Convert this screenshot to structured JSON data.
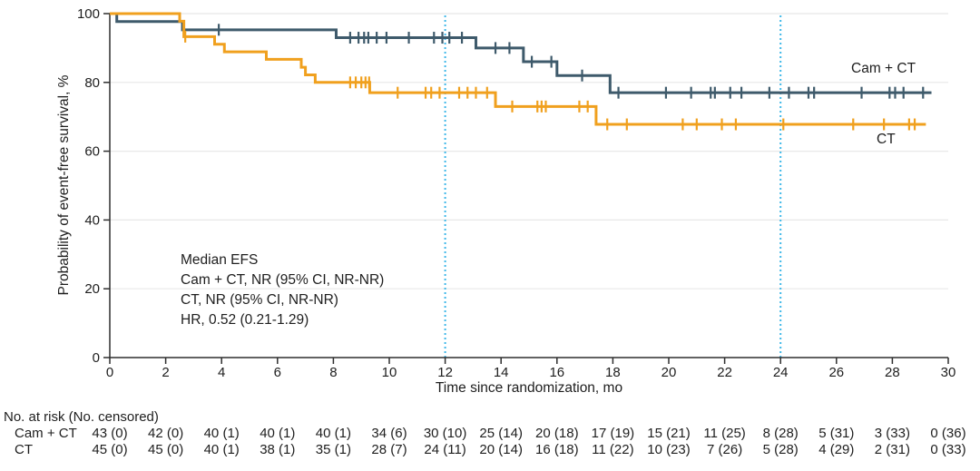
{
  "colors": {
    "axis": "#2E2E2E",
    "grid": "#E8E8E8",
    "text": "#1E1E1E",
    "reference_line": "#3FB8E8"
  },
  "chart_data": {
    "type": "line",
    "subtype": "kaplan-meier-step",
    "title": "",
    "xlabel": "Time since randomization, mo",
    "ylabel": "Probability of event-free survival, %",
    "xlim": [
      0,
      30
    ],
    "ylim": [
      0,
      100
    ],
    "xticks": [
      0,
      2,
      4,
      6,
      8,
      10,
      12,
      14,
      16,
      18,
      20,
      22,
      24,
      26,
      28,
      30
    ],
    "yticks": [
      0,
      20,
      40,
      60,
      80,
      100
    ],
    "grid": "horizontal",
    "legend_position": "inline-right",
    "reference_lines_x": [
      12,
      24
    ],
    "annotation_lines": [
      "Median EFS",
      "Cam + CT, NR (95% CI, NR-NR)",
      "CT, NR (95% CI, NR-NR)",
      "HR, 0.52 (0.21-1.29)"
    ],
    "series": [
      {
        "name": "Cam + CT",
        "color": "#3E5A6B",
        "steps": [
          [
            0,
            100
          ],
          [
            0.25,
            97.7
          ],
          [
            2.6,
            95.3
          ],
          [
            8.1,
            93.0
          ],
          [
            13.1,
            90.0
          ],
          [
            14.8,
            86.0
          ],
          [
            16.0,
            82.0
          ],
          [
            17.9,
            77.0
          ]
        ],
        "end_time": 29.4,
        "censors": [
          [
            3.9,
            95.3
          ],
          [
            8.6,
            93.0
          ],
          [
            8.9,
            93.0
          ],
          [
            9.1,
            93.0
          ],
          [
            9.25,
            93.0
          ],
          [
            9.55,
            93.0
          ],
          [
            9.9,
            93.0
          ],
          [
            10.7,
            93.0
          ],
          [
            11.6,
            93.0
          ],
          [
            11.9,
            93.0
          ],
          [
            12.15,
            93.0
          ],
          [
            12.6,
            93.0
          ],
          [
            13.8,
            90.0
          ],
          [
            14.3,
            90.0
          ],
          [
            15.1,
            86.0
          ],
          [
            15.8,
            86.0
          ],
          [
            16.9,
            82.0
          ],
          [
            18.2,
            77.0
          ],
          [
            19.9,
            77.0
          ],
          [
            20.8,
            77.0
          ],
          [
            21.5,
            77.0
          ],
          [
            21.65,
            77.0
          ],
          [
            22.2,
            77.0
          ],
          [
            22.6,
            77.0
          ],
          [
            23.6,
            77.0
          ],
          [
            24.3,
            77.0
          ],
          [
            25.0,
            77.0
          ],
          [
            25.2,
            77.0
          ],
          [
            26.9,
            77.0
          ],
          [
            27.9,
            77.0
          ],
          [
            28.1,
            77.0
          ],
          [
            28.4,
            77.0
          ],
          [
            29.1,
            77.0
          ]
        ]
      },
      {
        "name": "CT",
        "color": "#F0A01E",
        "steps": [
          [
            0,
            100
          ],
          [
            2.5,
            97.8
          ],
          [
            2.65,
            93.3
          ],
          [
            3.75,
            91.1
          ],
          [
            4.1,
            88.9
          ],
          [
            5.6,
            86.7
          ],
          [
            6.85,
            84.4
          ],
          [
            7.0,
            82.2
          ],
          [
            7.35,
            80.0
          ],
          [
            9.3,
            77.0
          ],
          [
            13.8,
            73.0
          ],
          [
            17.4,
            67.8
          ]
        ],
        "end_time": 29.2,
        "censors": [
          [
            2.7,
            93.3
          ],
          [
            8.6,
            80.0
          ],
          [
            8.8,
            80.0
          ],
          [
            9.0,
            80.0
          ],
          [
            9.15,
            80.0
          ],
          [
            9.28,
            80.0
          ],
          [
            10.3,
            77.0
          ],
          [
            11.3,
            77.0
          ],
          [
            11.5,
            77.0
          ],
          [
            11.8,
            77.0
          ],
          [
            12.5,
            77.0
          ],
          [
            12.8,
            77.0
          ],
          [
            13.1,
            77.0
          ],
          [
            13.5,
            77.0
          ],
          [
            14.4,
            73.0
          ],
          [
            15.3,
            73.0
          ],
          [
            15.45,
            73.0
          ],
          [
            15.6,
            73.0
          ],
          [
            16.8,
            73.0
          ],
          [
            17.1,
            73.0
          ],
          [
            17.8,
            67.8
          ],
          [
            18.5,
            67.8
          ],
          [
            20.5,
            67.8
          ],
          [
            21.0,
            67.8
          ],
          [
            21.9,
            67.8
          ],
          [
            22.4,
            67.8
          ],
          [
            24.1,
            67.8
          ],
          [
            26.6,
            67.8
          ],
          [
            27.7,
            67.8
          ],
          [
            28.6,
            67.8
          ],
          [
            28.8,
            67.8
          ]
        ]
      }
    ]
  },
  "risk_table": {
    "header": "No. at risk (No. censored)",
    "times": [
      0,
      2,
      4,
      6,
      8,
      10,
      12,
      14,
      16,
      18,
      20,
      22,
      24,
      26,
      28,
      30
    ],
    "rows": [
      {
        "label": "Cam + CT",
        "values": [
          "43 (0)",
          "42 (0)",
          "40 (1)",
          "40 (1)",
          "40 (1)",
          "34 (6)",
          "30 (10)",
          "25 (14)",
          "20 (18)",
          "17 (19)",
          "15 (21)",
          "11 (25)",
          "8 (28)",
          "5 (31)",
          "3 (33)",
          "0 (36)"
        ]
      },
      {
        "label": "CT",
        "values": [
          "45 (0)",
          "45 (0)",
          "40 (1)",
          "38 (1)",
          "35 (1)",
          "28 (7)",
          "24 (11)",
          "20 (14)",
          "16 (18)",
          "11 (22)",
          "10 (23)",
          "7 (26)",
          "5 (28)",
          "4 (29)",
          "2 (31)",
          "0 (33)"
        ]
      }
    ]
  }
}
